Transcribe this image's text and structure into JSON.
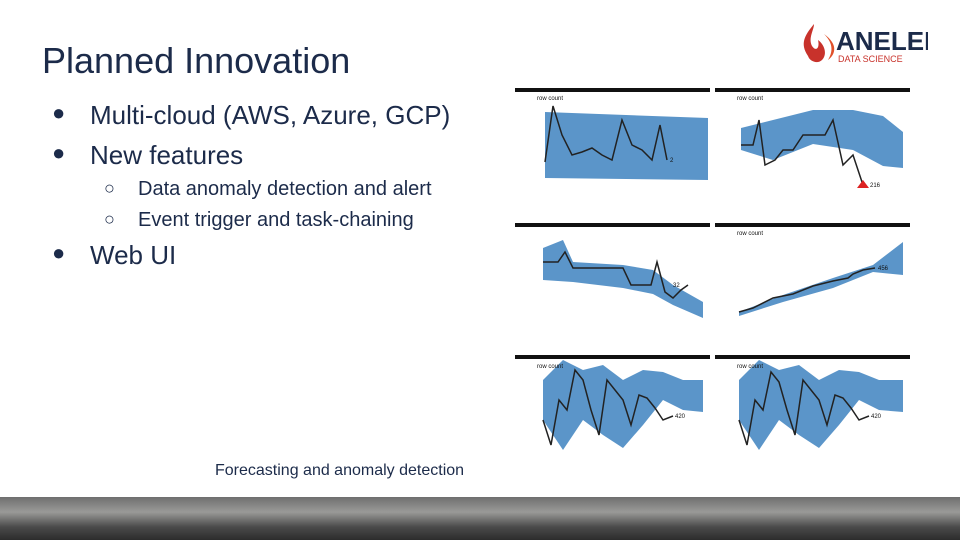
{
  "header": {
    "title": "Planned Innovation",
    "logo_name": "ANELEN",
    "logo_tagline": "DATA SCIENCE"
  },
  "bullets": [
    {
      "text": "Multi-cloud (AWS, Azure, GCP)",
      "level": 1
    },
    {
      "text": "New features",
      "level": 1
    },
    {
      "text": "Data anomaly detection and alert",
      "level": 2
    },
    {
      "text": "Event trigger and task-chaining",
      "level": 2
    },
    {
      "text": "Web UI",
      "level": 1
    }
  ],
  "figure": {
    "caption": "Forecasting and anomaly detection",
    "panels": [
      {
        "label": "row count",
        "end_label": "2"
      },
      {
        "label": "row count",
        "end_label": "216"
      },
      {
        "end_label": "32"
      },
      {
        "label": "row count",
        "end_label": "456"
      },
      {
        "label": "row count",
        "end_label": "420"
      },
      {
        "label": "row count",
        "end_label": "420"
      }
    ]
  }
}
